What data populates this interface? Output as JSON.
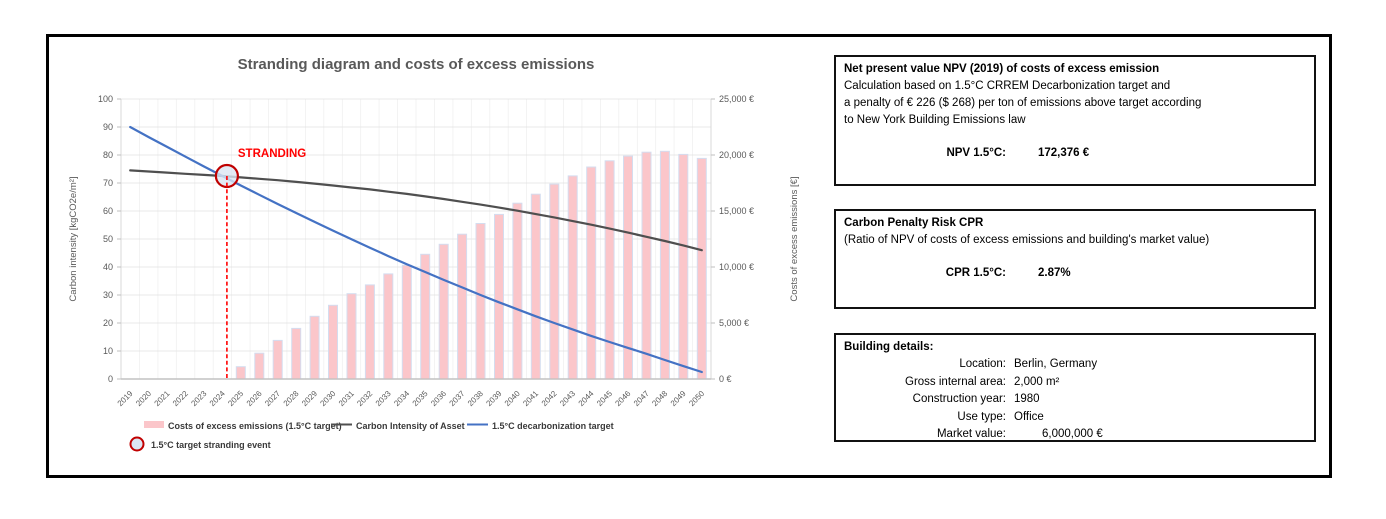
{
  "chart": {
    "title": "Stranding diagram and costs of excess emissions",
    "annotation": {
      "label": "STRANDING",
      "year": 2024,
      "value_left_axis": 72.5
    },
    "left_axis": {
      "title": "Carbon intensity [kgCO2e/m²]",
      "min": 0,
      "max": 100,
      "step": 10
    },
    "right_axis": {
      "title": "Costs of excess emissions [€]",
      "min": 0,
      "max": 25000,
      "step": 5000,
      "suffix": " €"
    },
    "legend": [
      {
        "swatch": "bar",
        "color": "#FBC6CA",
        "label": "Costs of excess emissions (1.5°C target)"
      },
      {
        "swatch": "line",
        "color": "#4F4F4F",
        "label": "Carbon Intensity of Asset"
      },
      {
        "swatch": "line",
        "color": "#4472C4",
        "label": "1.5°C decarbonization target"
      },
      {
        "swatch": "circle",
        "color": "#C00000",
        "label": "1.5°C target stranding event"
      }
    ]
  },
  "chart_data": {
    "type": "combo-bar-line",
    "title": "Stranding diagram and costs of excess emissions",
    "xlabel": "",
    "ylabel_left": "Carbon intensity [kgCO2e/m²]",
    "ylabel_right": "Costs of excess emissions [€]",
    "ylim_left": [
      0,
      100
    ],
    "ylim_right": [
      0,
      25000
    ],
    "grid": true,
    "legend_position": "bottom",
    "categories": [
      2019,
      2020,
      2021,
      2022,
      2023,
      2024,
      2025,
      2026,
      2027,
      2028,
      2029,
      2030,
      2031,
      2032,
      2033,
      2034,
      2035,
      2036,
      2037,
      2038,
      2039,
      2040,
      2041,
      2042,
      2043,
      2044,
      2045,
      2046,
      2047,
      2048,
      2049,
      2050
    ],
    "series": [
      {
        "name": "Costs of excess emissions (1.5°C target)",
        "type": "bar",
        "axis": "right",
        "color": "#FBC6CA",
        "values": [
          0,
          0,
          0,
          0,
          0,
          0,
          1100,
          2300,
          3450,
          4520,
          5600,
          6580,
          7620,
          8400,
          9380,
          10150,
          11130,
          12030,
          12930,
          13880,
          14700,
          15700,
          16500,
          17400,
          18130,
          18930,
          19480,
          19900,
          20250,
          20330,
          20050,
          19700
        ]
      },
      {
        "name": "Carbon Intensity of Asset",
        "type": "line",
        "axis": "left",
        "color": "#4F4F4F",
        "values": [
          74.5,
          74.1,
          73.7,
          73.3,
          72.9,
          72.5,
          72.0,
          71.5,
          71.0,
          70.4,
          69.8,
          69.1,
          68.4,
          67.7,
          66.9,
          66.1,
          65.2,
          64.3,
          63.3,
          62.3,
          61.2,
          60.1,
          58.9,
          57.7,
          56.4,
          55.1,
          53.7,
          52.3,
          50.8,
          49.3,
          47.7,
          46.0
        ]
      },
      {
        "name": "1.5°C decarbonization target",
        "type": "line",
        "axis": "left",
        "color": "#4472C4",
        "values": [
          90.0,
          86.4,
          82.9,
          79.4,
          75.9,
          72.5,
          69.1,
          65.8,
          62.5,
          59.3,
          56.1,
          53.0,
          49.9,
          46.9,
          43.9,
          41.0,
          38.2,
          35.4,
          32.7,
          30.0,
          27.4,
          24.9,
          22.4,
          20.0,
          17.7,
          15.4,
          13.2,
          11.1,
          9.0,
          6.8,
          4.6,
          2.5
        ]
      }
    ],
    "annotations": [
      {
        "type": "stranding-event",
        "label": "STRANDING",
        "year": 2024,
        "value_left_axis": 72.5
      }
    ]
  },
  "panels": {
    "npv": {
      "title": "Net present value NPV (2019) of costs of excess emission",
      "lines": [
        "Calculation based on 1.5°C CRREM Decarbonization target and",
        "a penalty of € 226 ($ 268) per ton of emissions above target according",
        "to New York Building Emissions law"
      ],
      "result_label": "NPV 1.5°C:",
      "result_value": "172,376 €"
    },
    "cpr": {
      "title": "Carbon Penalty Risk CPR",
      "lines": [
        "(Ratio of NPV of costs of excess emissions and building's market value)"
      ],
      "result_label": "CPR 1.5°C:",
      "result_value": "2.87%"
    },
    "building": {
      "title": "Building details:",
      "rows": [
        {
          "label": "Location:",
          "value": "Berlin, Germany",
          "indent": false
        },
        {
          "label": "Gross internal area:",
          "value": "2,000 m²",
          "indent": false
        },
        {
          "label": "Construction year:",
          "value": "1980",
          "indent": false
        },
        {
          "label": "Use type:",
          "value": "Office",
          "indent": false
        },
        {
          "label": "Market value:",
          "value": "6,000,000 €",
          "indent": true
        }
      ]
    }
  },
  "colors": {
    "bar_fill": "#FBC6CA",
    "bar_border": "#D4DDEF",
    "line_gray": "#4F4F4F",
    "line_blue": "#4472C4",
    "stranding_red": "#C00000",
    "dash_red": "#FF0000",
    "circle_fill": "#DCE6F3",
    "axis_text": "#595959",
    "gridline": "#E2E2E2"
  }
}
